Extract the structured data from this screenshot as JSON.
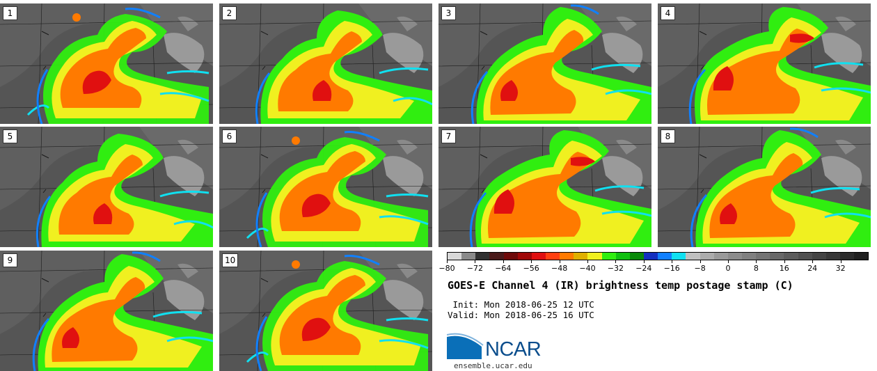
{
  "panels": [
    {
      "label": "1"
    },
    {
      "label": "2"
    },
    {
      "label": "3"
    },
    {
      "label": "4"
    },
    {
      "label": "5"
    },
    {
      "label": "6"
    },
    {
      "label": "7"
    },
    {
      "label": "8"
    },
    {
      "label": "9"
    },
    {
      "label": "10"
    }
  ],
  "colorbar": {
    "colors": [
      "#d8d8d8",
      "#8a8a8a",
      "#303030",
      "#4a1a1a",
      "#6e0a0a",
      "#a00808",
      "#e01010",
      "#ff4010",
      "#ff7a00",
      "#e0b000",
      "#f0f020",
      "#30ee10",
      "#10c010",
      "#0a8a0a",
      "#1430c0",
      "#1080ff",
      "#10e0f0",
      "#c0c0c0",
      "#acacac",
      "#9a9a9a",
      "#8c8c8c",
      "#808080",
      "#747474",
      "#686868",
      "#5c5c5c",
      "#505050",
      "#444444",
      "#383838",
      "#2c2c2c",
      "#202020"
    ],
    "ticks": [
      "−80",
      "−72",
      "−64",
      "−56",
      "−48",
      "−40",
      "−32",
      "−24",
      "−16",
      "−8",
      "0",
      "8",
      "16",
      "24",
      "32"
    ]
  },
  "title": "GOES-E Channel 4 (IR) brightness temp postage stamp (C)",
  "init": " Init: Mon 2018-06-25 12 UTC",
  "valid": "Valid: Mon 2018-06-25 16 UTC",
  "logo": {
    "name": "NCAR",
    "url": "ensemble.ucar.edu"
  }
}
